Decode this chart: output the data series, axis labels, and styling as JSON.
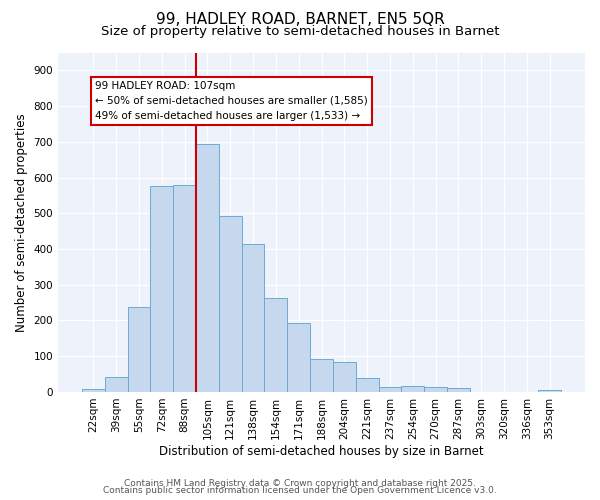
{
  "title": "99, HADLEY ROAD, BARNET, EN5 5QR",
  "subtitle": "Size of property relative to semi-detached houses in Barnet",
  "xlabel": "Distribution of semi-detached houses by size in Barnet",
  "ylabel": "Number of semi-detached properties",
  "categories": [
    "22sqm",
    "39sqm",
    "55sqm",
    "72sqm",
    "88sqm",
    "105sqm",
    "121sqm",
    "138sqm",
    "154sqm",
    "171sqm",
    "188sqm",
    "204sqm",
    "221sqm",
    "237sqm",
    "254sqm",
    "270sqm",
    "287sqm",
    "303sqm",
    "320sqm",
    "336sqm",
    "353sqm"
  ],
  "values": [
    8,
    42,
    238,
    575,
    578,
    693,
    493,
    413,
    263,
    192,
    93,
    83,
    38,
    15,
    17,
    14,
    11,
    1,
    1,
    1,
    5
  ],
  "bar_color": "#c5d8ed",
  "bar_edge_color": "#6aabd2",
  "vline_x_index": 5,
  "vline_color": "#cc0000",
  "annotation_line1": "99 HADLEY ROAD: 107sqm",
  "annotation_line2": "← 50% of semi-detached houses are smaller (1,585)",
  "annotation_line3": "49% of semi-detached houses are larger (1,533) →",
  "annotation_box_edgecolor": "#cc0000",
  "ylim": [
    0,
    950
  ],
  "yticks": [
    0,
    100,
    200,
    300,
    400,
    500,
    600,
    700,
    800,
    900
  ],
  "footer1": "Contains HM Land Registry data © Crown copyright and database right 2025.",
  "footer2": "Contains public sector information licensed under the Open Government Licence v3.0.",
  "bg_color": "#ffffff",
  "plot_bg_color": "#eef2fb",
  "title_fontsize": 11,
  "subtitle_fontsize": 9.5,
  "tick_fontsize": 7.5,
  "ylabel_fontsize": 8.5,
  "xlabel_fontsize": 8.5,
  "footer_fontsize": 6.5
}
